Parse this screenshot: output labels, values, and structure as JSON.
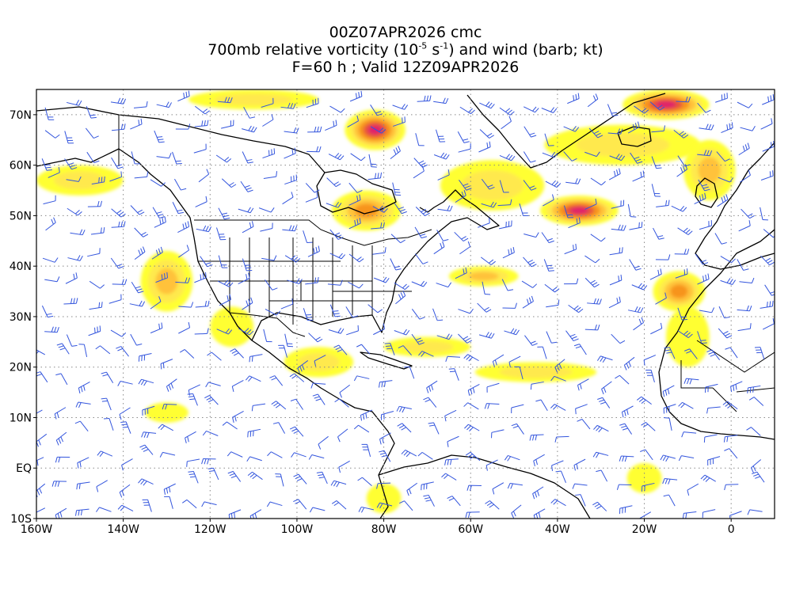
{
  "title": {
    "line1": "00Z07APR2026 cmc",
    "line2_pre": "700mb relative vorticity (10",
    "line2_sup1": "-5",
    "line2_mid": " s",
    "line2_sup2": "-1",
    "line2_post": ") and wind (barb; kt)",
    "line3": "F=60 h ; Valid 12Z09APR2026"
  },
  "axes": {
    "lon_min": -160,
    "lon_max": 10,
    "lat_min": -10,
    "lat_max": 75,
    "y_ticks": [
      {
        "lat": 70,
        "label": "70N"
      },
      {
        "lat": 60,
        "label": "60N"
      },
      {
        "lat": 50,
        "label": "50N"
      },
      {
        "lat": 40,
        "label": "40N"
      },
      {
        "lat": 30,
        "label": "30N"
      },
      {
        "lat": 20,
        "label": "20N"
      },
      {
        "lat": 10,
        "label": "10N"
      },
      {
        "lat": 0,
        "label": "EQ"
      },
      {
        "lat": -10,
        "label": "10S"
      }
    ],
    "x_ticks": [
      {
        "lon": -160,
        "label": "160W"
      },
      {
        "lon": -140,
        "label": "140W"
      },
      {
        "lon": -120,
        "label": "120W"
      },
      {
        "lon": -100,
        "label": "100W"
      },
      {
        "lon": -80,
        "label": "80W"
      },
      {
        "lon": -60,
        "label": "60W"
      },
      {
        "lon": -40,
        "label": "40W"
      },
      {
        "lon": -20,
        "label": "20W"
      },
      {
        "lon": 0,
        "label": "0"
      }
    ],
    "gridlines": "dotted"
  },
  "colors": {
    "level1": "#ffff33",
    "level2": "#ffe94d",
    "level3": "#ffc23a",
    "level4": "#f7941d",
    "level5": "#e9543a",
    "level6": "#e0206a",
    "barb": "#3355dd",
    "coast": "#000000",
    "grid": "#888888"
  },
  "vorticity_features": [
    {
      "lon": -82,
      "lat": 67,
      "rx": 7,
      "ry": 4,
      "level": 6
    },
    {
      "lon": -84,
      "lat": 51,
      "rx": 8,
      "ry": 4,
      "level": 4
    },
    {
      "lon": -35,
      "lat": 51,
      "rx": 9,
      "ry": 3,
      "level": 6
    },
    {
      "lon": -15,
      "lat": 72,
      "rx": 10,
      "ry": 3,
      "level": 6
    },
    {
      "lon": -12,
      "lat": 35,
      "rx": 6,
      "ry": 4,
      "level": 4
    },
    {
      "lon": -57,
      "lat": 38,
      "rx": 8,
      "ry": 2,
      "level": 3
    },
    {
      "lon": -130,
      "lat": 37,
      "rx": 6,
      "ry": 6,
      "level": 3
    },
    {
      "lon": -150,
      "lat": 57,
      "rx": 10,
      "ry": 3,
      "level": 2
    },
    {
      "lon": -45,
      "lat": 19,
      "rx": 14,
      "ry": 2,
      "level": 2
    },
    {
      "lon": -55,
      "lat": 56,
      "rx": 12,
      "ry": 5,
      "level": 2
    },
    {
      "lon": -25,
      "lat": 64,
      "rx": 18,
      "ry": 4,
      "level": 2
    },
    {
      "lon": -95,
      "lat": 21,
      "rx": 8,
      "ry": 3,
      "level": 2
    },
    {
      "lon": -70,
      "lat": 24,
      "rx": 10,
      "ry": 2,
      "level": 2
    },
    {
      "lon": -110,
      "lat": 73,
      "rx": 15,
      "ry": 2,
      "level": 2
    },
    {
      "lon": -5,
      "lat": 59,
      "rx": 6,
      "ry": 6,
      "level": 3
    },
    {
      "lon": -115,
      "lat": 28,
      "rx": 5,
      "ry": 4,
      "level": 1
    },
    {
      "lon": -10,
      "lat": 26,
      "rx": 5,
      "ry": 6,
      "level": 1
    },
    {
      "lon": -130,
      "lat": 11,
      "rx": 5,
      "ry": 2,
      "level": 1
    },
    {
      "lon": -80,
      "lat": -6,
      "rx": 4,
      "ry": 3,
      "level": 1
    },
    {
      "lon": -20,
      "lat": -2,
      "rx": 4,
      "ry": 3,
      "level": 1
    }
  ]
}
